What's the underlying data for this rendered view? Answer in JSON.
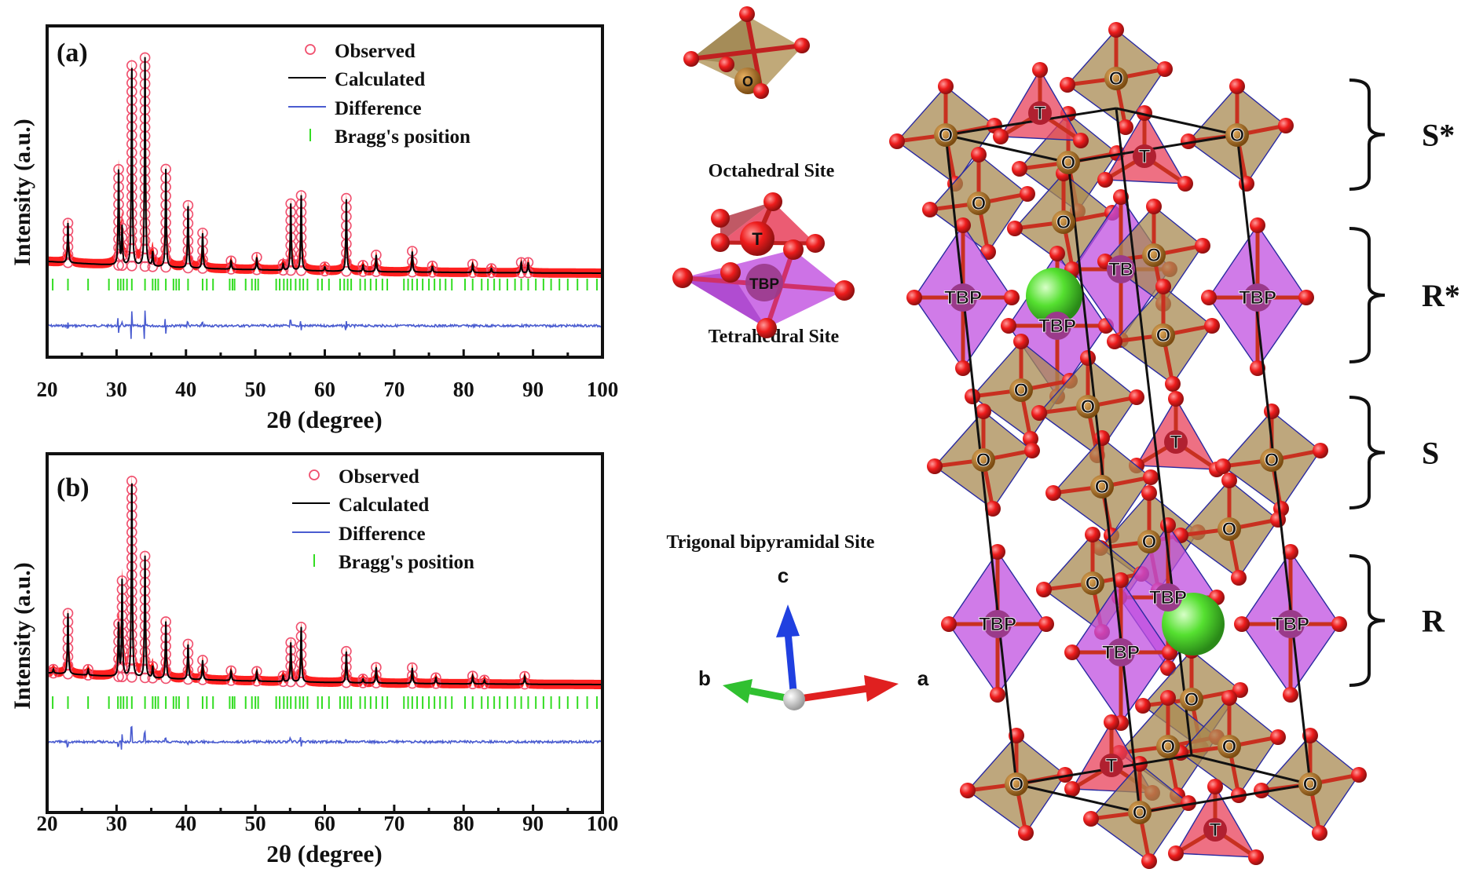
{
  "chart_data": [
    {
      "type": "line",
      "panel_label": "(a)",
      "xlabel": "2θ (degree)",
      "ylabel": "Intensity (a.u.)",
      "xlim": [
        20,
        100
      ],
      "xticks": [
        "20",
        "30",
        "40",
        "50",
        "60",
        "70",
        "80",
        "90",
        "100"
      ],
      "legend": [
        "Observed",
        "Calculated",
        "Difference",
        "Bragg's position"
      ],
      "legend_position": "top-right",
      "grid": false,
      "series_colors": {
        "observed": "#f0506e",
        "observed_fill": "#ff2020",
        "calculated": "#000000",
        "difference": "#4a5cd0",
        "bragg": "#33dd22"
      },
      "peaks": [
        {
          "x": 23.0,
          "y": 19
        },
        {
          "x": 30.3,
          "y": 46
        },
        {
          "x": 30.8,
          "y": 18
        },
        {
          "x": 32.2,
          "y": 96
        },
        {
          "x": 34.1,
          "y": 100
        },
        {
          "x": 35.2,
          "y": 7
        },
        {
          "x": 37.1,
          "y": 47
        },
        {
          "x": 40.3,
          "y": 30
        },
        {
          "x": 42.4,
          "y": 17
        },
        {
          "x": 46.5,
          "y": 4
        },
        {
          "x": 50.2,
          "y": 6
        },
        {
          "x": 54.0,
          "y": 3
        },
        {
          "x": 55.1,
          "y": 32
        },
        {
          "x": 56.6,
          "y": 36
        },
        {
          "x": 60.0,
          "y": 2
        },
        {
          "x": 63.1,
          "y": 35
        },
        {
          "x": 65.5,
          "y": 3
        },
        {
          "x": 67.4,
          "y": 8
        },
        {
          "x": 72.6,
          "y": 10
        },
        {
          "x": 75.5,
          "y": 3
        },
        {
          "x": 81.3,
          "y": 4
        },
        {
          "x": 84.0,
          "y": 2
        },
        {
          "x": 88.3,
          "y": 5
        },
        {
          "x": 89.3,
          "y": 5
        }
      ],
      "bragg_positions": [
        20.8,
        23.0,
        25.9,
        28.9,
        30.2,
        30.6,
        31.0,
        31.5,
        32.2,
        34.1,
        35.2,
        35.6,
        36.0,
        37.1,
        38.2,
        38.6,
        39.0,
        40.3,
        42.4,
        43.0,
        43.9,
        46.3,
        46.7,
        47.0,
        48.6,
        49.5,
        50.0,
        50.4,
        53.0,
        53.5,
        54.1,
        54.6,
        55.1,
        55.8,
        56.4,
        56.9,
        57.5,
        59.0,
        59.6,
        60.6,
        62.2,
        62.8,
        63.3,
        63.8,
        65.1,
        65.8,
        66.6,
        67.4,
        68.3,
        69.0,
        71.4,
        72.0,
        72.6,
        73.3,
        74.1,
        75.0,
        75.8,
        76.6,
        77.4,
        78.3,
        80.2,
        81.3,
        82.6,
        83.5,
        84.4,
        85.2,
        86.3,
        87.4,
        88.3,
        89.3,
        90.4,
        91.5,
        92.6,
        93.8,
        95.0,
        96.4,
        97.8,
        99.2
      ]
    },
    {
      "type": "line",
      "panel_label": "(b)",
      "xlabel": "2θ (degree)",
      "ylabel": "Intensity (a.u.)",
      "xlim": [
        20,
        100
      ],
      "xticks": [
        "20",
        "30",
        "40",
        "50",
        "60",
        "70",
        "80",
        "90",
        "100"
      ],
      "legend": [
        "Observed",
        "Calculated",
        "Difference",
        "Bragg's position"
      ],
      "legend_position": "top-right",
      "grid": false,
      "series_colors": {
        "observed": "#f0506e",
        "observed_fill": "#ff2020",
        "calculated": "#000000",
        "difference": "#4a5cd0",
        "bragg": "#33dd22"
      },
      "peaks": [
        {
          "x": 20.9,
          "y": 2
        },
        {
          "x": 23.0,
          "y": 31
        },
        {
          "x": 25.9,
          "y": 3
        },
        {
          "x": 30.3,
          "y": 27
        },
        {
          "x": 30.8,
          "y": 49
        },
        {
          "x": 32.2,
          "y": 100
        },
        {
          "x": 34.1,
          "y": 62
        },
        {
          "x": 35.2,
          "y": 6
        },
        {
          "x": 37.1,
          "y": 29
        },
        {
          "x": 40.3,
          "y": 18
        },
        {
          "x": 42.4,
          "y": 10
        },
        {
          "x": 46.5,
          "y": 5
        },
        {
          "x": 50.2,
          "y": 5
        },
        {
          "x": 54.0,
          "y": 3
        },
        {
          "x": 55.1,
          "y": 20
        },
        {
          "x": 56.6,
          "y": 28
        },
        {
          "x": 63.1,
          "y": 16
        },
        {
          "x": 65.5,
          "y": 2
        },
        {
          "x": 67.4,
          "y": 8
        },
        {
          "x": 72.6,
          "y": 8
        },
        {
          "x": 76.0,
          "y": 3
        },
        {
          "x": 81.3,
          "y": 4
        },
        {
          "x": 83.0,
          "y": 2
        },
        {
          "x": 88.8,
          "y": 4
        }
      ],
      "bragg_positions": [
        20.8,
        23.0,
        25.9,
        28.9,
        30.2,
        30.6,
        31.0,
        31.5,
        32.2,
        34.1,
        35.2,
        35.6,
        36.0,
        37.1,
        38.2,
        38.6,
        39.0,
        40.3,
        42.4,
        43.0,
        43.9,
        46.3,
        46.7,
        47.0,
        48.6,
        49.5,
        50.0,
        50.4,
        53.0,
        53.5,
        54.1,
        54.6,
        55.1,
        55.8,
        56.4,
        56.9,
        57.5,
        59.0,
        59.6,
        60.6,
        62.2,
        62.8,
        63.3,
        63.8,
        65.1,
        65.8,
        66.6,
        67.4,
        68.3,
        69.0,
        71.4,
        72.0,
        72.6,
        73.3,
        74.1,
        75.0,
        75.8,
        76.6,
        77.4,
        78.3,
        80.2,
        81.3,
        82.6,
        83.5,
        84.4,
        85.2,
        86.3,
        87.4,
        88.3,
        89.3,
        90.4,
        91.5,
        92.6,
        93.8,
        95.0,
        96.4,
        97.8,
        99.2
      ]
    }
  ],
  "sites": {
    "octahedral": {
      "label": "Octahedral Site",
      "symbol": "O",
      "color": "#b59a62"
    },
    "tetrahedral": {
      "label": "Tetrahedral Site",
      "symbol": "T",
      "color": "#e8405a"
    },
    "tbp": {
      "label": "Trigonal bipyramidal Site",
      "symbol": "TBP",
      "color": "#c04fe0"
    }
  },
  "axes_triad": {
    "a": "a",
    "b": "b",
    "c": "c",
    "colors": {
      "a": "#e02020",
      "b": "#30c030",
      "c": "#2040e0"
    }
  },
  "structure": {
    "site_labels": [
      "O",
      "O",
      "O",
      "O",
      "T",
      "T",
      "O",
      "O",
      "TBP",
      "TBP",
      "TB",
      "O",
      "O",
      "TBP",
      "O",
      "O",
      "T",
      "O",
      "O",
      "O",
      "O",
      "O",
      "O",
      "TBP",
      "TBP",
      "TBP",
      "TBP",
      "O",
      "O",
      "O",
      "T",
      "O",
      "O",
      "T",
      "O"
    ],
    "blocks": [
      "S*",
      "R*",
      "S",
      "R"
    ],
    "ba_color": "#55e030",
    "oxygen_color": "#ee1c1c"
  }
}
